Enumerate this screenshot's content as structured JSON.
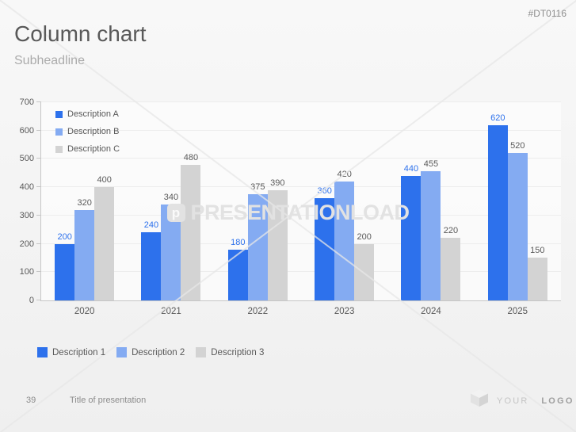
{
  "slide": {
    "code": "#DT0116",
    "title": "Column chart",
    "subtitle": "Subheadline",
    "watermark": {
      "logo_letter": "p",
      "text": "PRESENTATIONLOAD"
    },
    "footer": {
      "page_number": "39",
      "presentation_title": "Title of presentation",
      "logo_text_light": "YOUR",
      "logo_text_bold": "LOGO"
    }
  },
  "chart_data": {
    "type": "bar",
    "title": "",
    "categories": [
      "2020",
      "2021",
      "2022",
      "2023",
      "2024",
      "2025"
    ],
    "series": [
      {
        "name": "Description A",
        "color": "#2d71ec",
        "label_color": "#2d71ec",
        "values": [
          200,
          240,
          180,
          360,
          440,
          620
        ]
      },
      {
        "name": "Description B",
        "color": "#84abf2",
        "label_color": "#595959",
        "values": [
          320,
          340,
          375,
          420,
          455,
          520
        ]
      },
      {
        "name": "Description C",
        "color": "#d3d3d3",
        "label_color": "#595959",
        "values": [
          400,
          480,
          390,
          200,
          220,
          150
        ]
      }
    ],
    "ylim": [
      0,
      700
    ],
    "yticks": [
      0,
      100,
      200,
      300,
      400,
      500,
      600,
      700
    ],
    "grid": "horizontal",
    "legend_inside_position": "top-left",
    "bottom_legend": [
      {
        "label": "Description 1",
        "color": "#2d71ec"
      },
      {
        "label": "Description 2",
        "color": "#84abf2"
      },
      {
        "label": "Description 3",
        "color": "#d3d3d3"
      }
    ]
  }
}
